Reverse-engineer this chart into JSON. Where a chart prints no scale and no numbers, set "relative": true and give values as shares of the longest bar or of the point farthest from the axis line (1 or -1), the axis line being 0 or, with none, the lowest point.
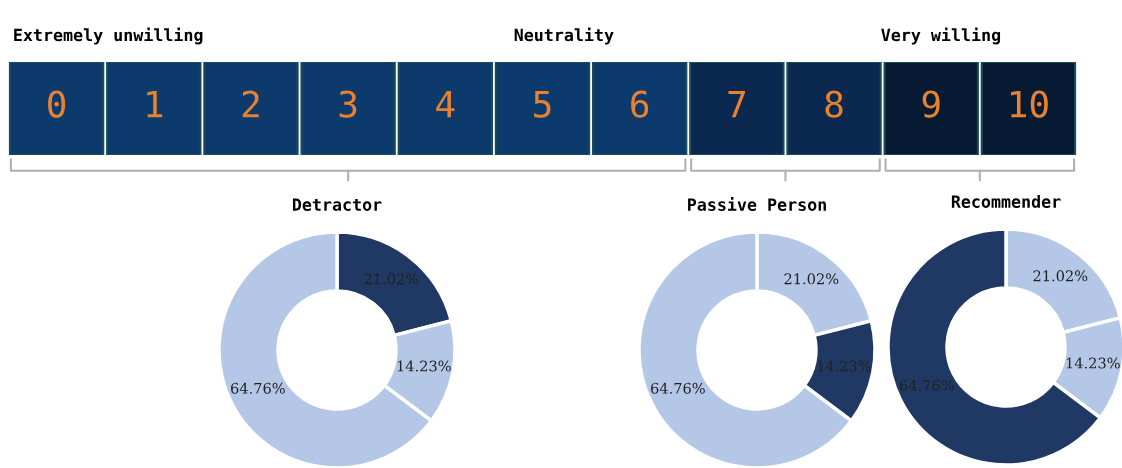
{
  "chart_data": [
    {
      "type": "bar",
      "relative": true,
      "categories": [
        "0",
        "1",
        "2",
        "3",
        "4",
        "5",
        "6",
        "7",
        "8",
        "9",
        "10"
      ],
      "values": [
        1,
        1,
        1,
        1,
        1,
        1,
        1,
        1,
        1,
        1,
        1
      ],
      "colors": [
        "#0d3a6c",
        "#0d3a6c",
        "#0d3a6c",
        "#0d3a6c",
        "#0d3a6c",
        "#0d3a6c",
        "#0d3a6c",
        "#0b2850",
        "#0b2850",
        "#071a33",
        "#071a33"
      ],
      "annotations": [
        "Extremely unwilling",
        "Neutrality",
        "Very willing"
      ]
    },
    {
      "type": "donut",
      "title": "Detractor",
      "categories": [
        null,
        null,
        null
      ],
      "values": [
        21.02,
        14.23,
        64.76
      ],
      "colors": [
        "#1f3864",
        "#b4c7e7",
        "#b4c7e7"
      ],
      "value_labels": [
        "21.02%",
        "14.23%",
        "64.76%"
      ]
    },
    {
      "type": "donut",
      "title": "Passive Person",
      "categories": [
        null,
        null,
        null
      ],
      "values": [
        21.02,
        14.23,
        64.76
      ],
      "colors": [
        "#b4c7e7",
        "#1f3864",
        "#b4c7e7"
      ],
      "value_labels": [
        "21.02%",
        "14.23%",
        "64.76%"
      ]
    },
    {
      "type": "donut",
      "title": "Recommender",
      "categories": [
        null,
        null,
        null
      ],
      "values": [
        21.02,
        14.23,
        64.76
      ],
      "colors": [
        "#b4c7e7",
        "#b4c7e7",
        "#1f3864"
      ],
      "value_labels": [
        "21.02%",
        "14.23%",
        "64.76%"
      ]
    }
  ]
}
